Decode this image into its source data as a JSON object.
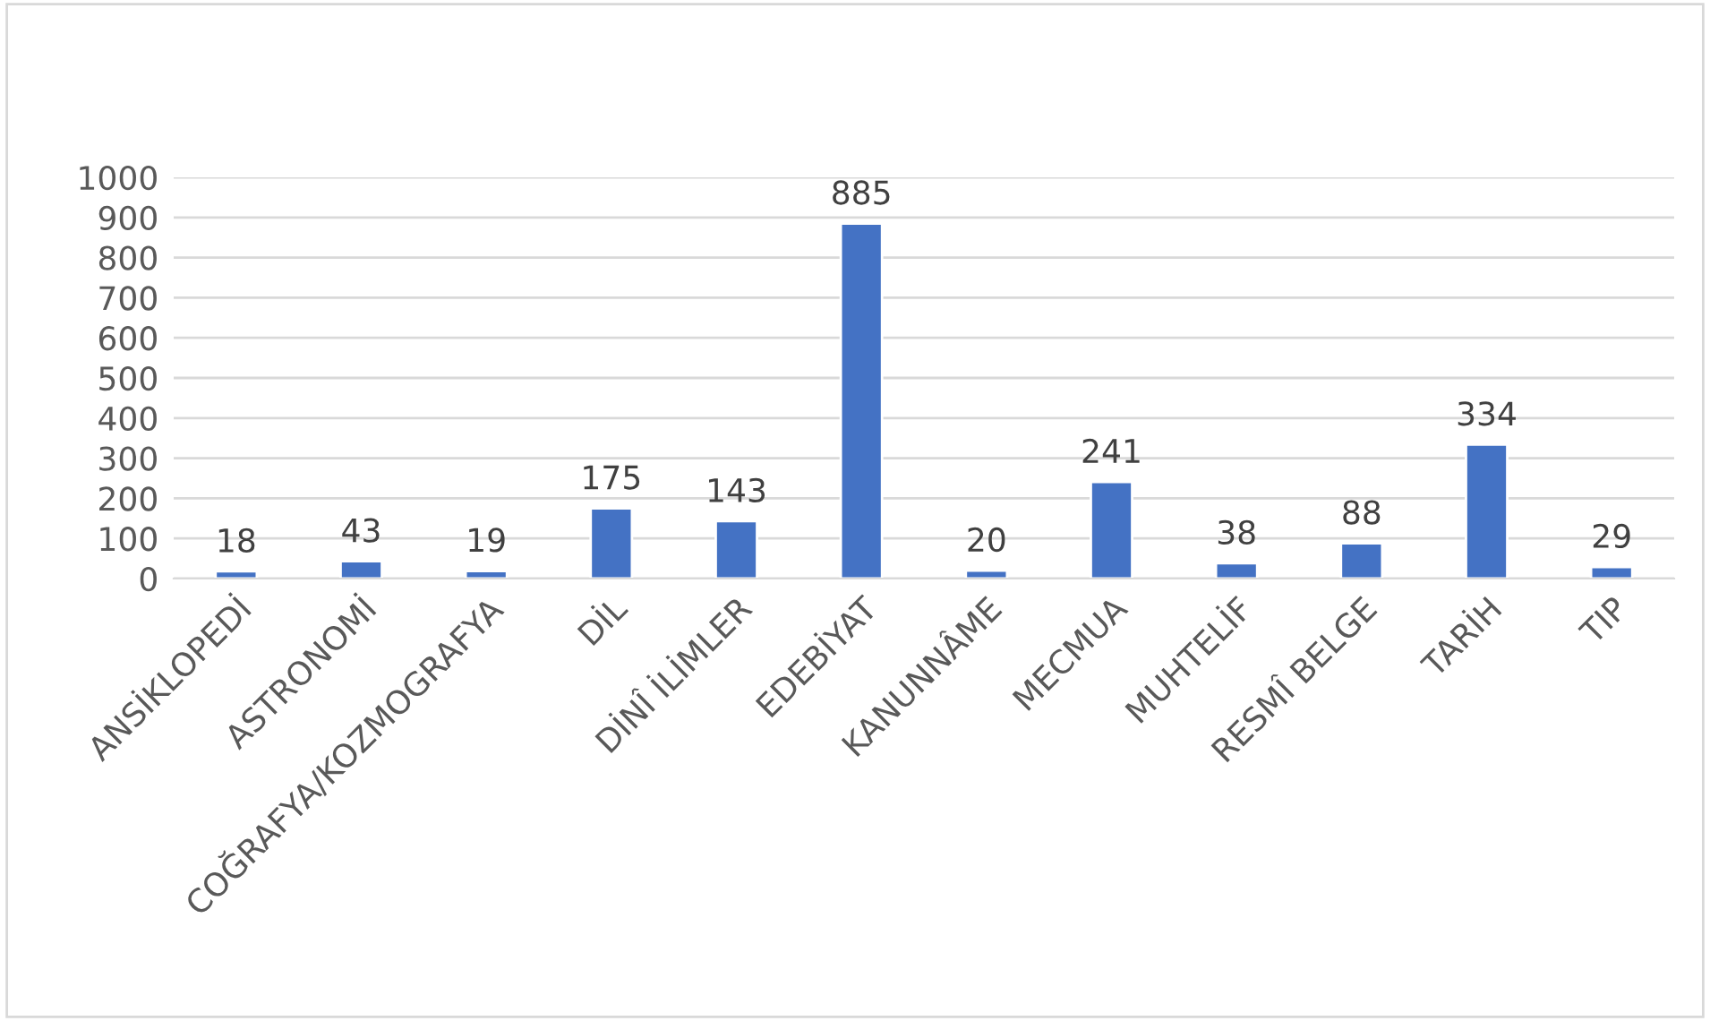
{
  "chart_data": {
    "type": "bar",
    "categories": [
      "ANSİKLOPEDİ",
      "ASTRONOMİ",
      "COĞRAFYA/KOZMOGRAFYA",
      "DİL",
      "DİNÎ İLİMLER",
      "EDEBİYAT",
      "KANUNNÂME",
      "MECMUA",
      "MUHTELİF",
      "RESMÎ BELGE",
      "TARİH",
      "TIP"
    ],
    "values": [
      18,
      43,
      19,
      175,
      143,
      885,
      20,
      241,
      38,
      88,
      334,
      29
    ],
    "color": "#4472c4",
    "ylim": [
      0,
      1000
    ],
    "yticks": [
      0,
      100,
      200,
      300,
      400,
      500,
      600,
      700,
      800,
      900,
      1000
    ],
    "grid": "y",
    "data_labels": true
  }
}
